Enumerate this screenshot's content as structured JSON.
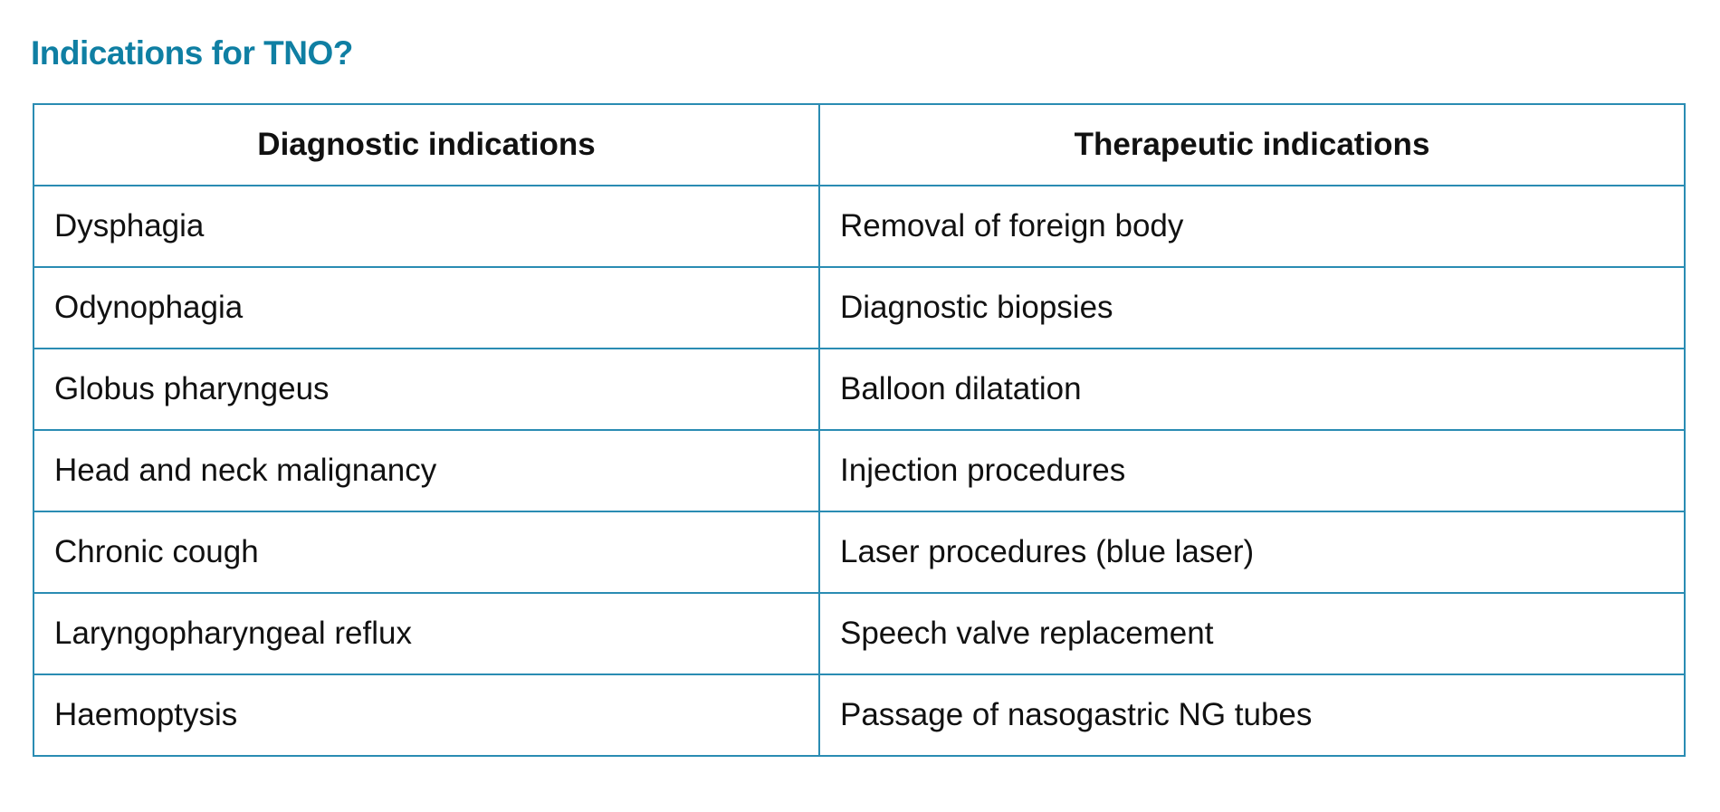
{
  "title": "Indications for TNO?",
  "colors": {
    "title": "#0f7fa3",
    "border": "#2a8cb3"
  },
  "table": {
    "headers": [
      "Diagnostic indications",
      "Therapeutic indications"
    ],
    "rows": [
      [
        "Dysphagia",
        "Removal of foreign body"
      ],
      [
        "Odynophagia",
        "Diagnostic biopsies"
      ],
      [
        "Globus pharyngeus",
        "Balloon dilatation"
      ],
      [
        "Head and neck malignancy",
        "Injection procedures"
      ],
      [
        "Chronic cough",
        "Laser procedures (blue laser)"
      ],
      [
        "Laryngopharyngeal reflux",
        "Speech valve replacement"
      ],
      [
        "Haemoptysis",
        "Passage of nasogastric NG tubes"
      ]
    ]
  }
}
